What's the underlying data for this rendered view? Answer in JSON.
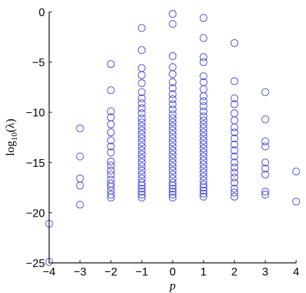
{
  "chart_data": {
    "type": "scatter",
    "xlabel": "p",
    "ylabel_base": "log",
    "ylabel_sub": "10",
    "ylabel_arg": "(λ)",
    "xlim": [
      -4,
      4
    ],
    "ylim": [
      -25,
      0
    ],
    "x_ticks": [
      -4,
      -3,
      -2,
      -1,
      0,
      1,
      2,
      3,
      4
    ],
    "x_tick_labels": [
      "−4",
      "−3",
      "−2",
      "−1",
      "0",
      "1",
      "2",
      "3",
      "4"
    ],
    "y_ticks": [
      0,
      -5,
      -10,
      -15,
      -20,
      -25
    ],
    "y_tick_labels": [
      "0",
      "−5",
      "−10",
      "−15",
      "−20",
      "−25"
    ],
    "marker": "open-circle",
    "marker_color": "#3b3bdc",
    "grid": false,
    "points": [
      {
        "x": -4,
        "y": [
          -21.1,
          -24.9
        ]
      },
      {
        "x": -3,
        "y": [
          -11.6,
          -14.4,
          -16.6,
          -17.3,
          -19.2
        ]
      },
      {
        "x": -2,
        "y": [
          -5.2,
          -7.8,
          -9.9,
          -10.5,
          -11.2,
          -12.0,
          -12.8,
          -13.4,
          -14.0,
          -14.9,
          -15.3,
          -15.8,
          -16.2,
          -16.7,
          -17.1,
          -17.4,
          -17.8,
          -18.2,
          -18.5
        ]
      },
      {
        "x": -1,
        "y": [
          -1.6,
          -3.8,
          -5.6,
          -6.3,
          -7.1,
          -8.0,
          -8.6,
          -9.1,
          -9.6,
          -10.1,
          -10.6,
          -11.0,
          -11.4,
          -11.8,
          -12.2,
          -12.6,
          -13.0,
          -13.4,
          -13.8,
          -14.2,
          -14.6,
          -15.0,
          -15.4,
          -15.8,
          -16.2,
          -16.6,
          -17.0,
          -17.3,
          -17.6,
          -17.9,
          -18.2,
          -18.5
        ]
      },
      {
        "x": 0,
        "y": [
          -0.2,
          -1.2,
          -4.4,
          -5.5,
          -6.2,
          -7.0,
          -7.6,
          -8.2,
          -8.7,
          -9.2,
          -9.7,
          -10.2,
          -10.6,
          -11.0,
          -11.4,
          -11.8,
          -12.2,
          -12.6,
          -13.0,
          -13.4,
          -13.8,
          -14.2,
          -14.6,
          -15.0,
          -15.4,
          -15.8,
          -16.2,
          -16.6,
          -17.0,
          -17.3,
          -17.6,
          -17.9,
          -18.2,
          -18.5
        ]
      },
      {
        "x": 1,
        "y": [
          -0.6,
          -2.6,
          -4.5,
          -5.0,
          -6.4,
          -7.0,
          -7.7,
          -8.4,
          -8.9,
          -9.4,
          -9.9,
          -10.4,
          -10.8,
          -11.2,
          -11.6,
          -12.0,
          -12.4,
          -12.8,
          -13.2,
          -13.6,
          -14.0,
          -14.4,
          -14.8,
          -15.2,
          -15.6,
          -16.0,
          -16.4,
          -16.8,
          -17.2,
          -17.5,
          -17.8,
          -18.1,
          -18.4
        ]
      },
      {
        "x": 2,
        "y": [
          -3.1,
          -6.9,
          -8.6,
          -9.2,
          -10.1,
          -10.8,
          -11.5,
          -12.0,
          -12.6,
          -13.2,
          -13.8,
          -14.4,
          -15.0,
          -15.5,
          -16.0,
          -16.5,
          -17.0,
          -17.6,
          -18.0,
          -18.4
        ]
      },
      {
        "x": 3,
        "y": [
          -8.0,
          -10.7,
          -12.9,
          -13.4,
          -15.0,
          -15.6,
          -16.2,
          -17.9,
          -18.2
        ]
      },
      {
        "x": 4,
        "y": [
          -15.9,
          -18.9
        ]
      }
    ]
  }
}
